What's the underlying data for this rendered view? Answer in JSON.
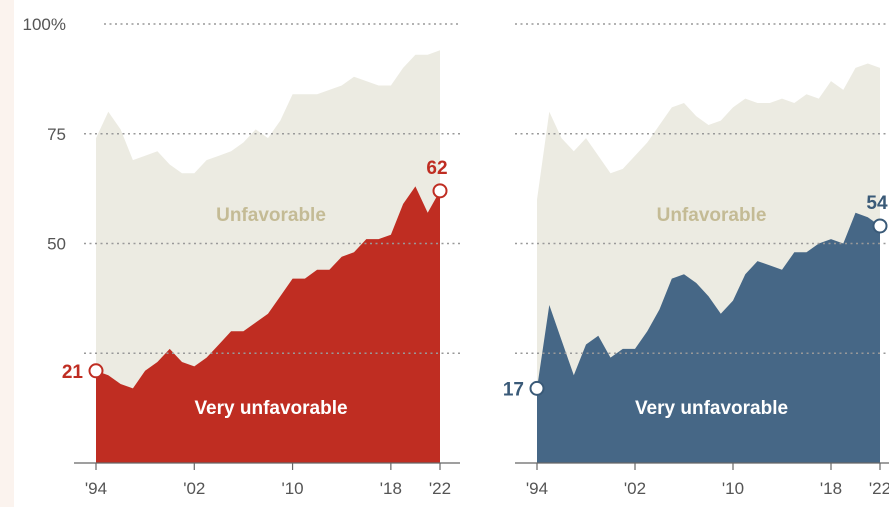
{
  "colors": {
    "page_bg": "#fbf3ee",
    "plot_bg": "#ffffff",
    "unfavorable_fill": "#ecebe2",
    "unfavorable_label": "#c4bb95",
    "left_very_fill": "#bf2d22",
    "left_label_accent": "#bf2d22",
    "right_very_fill": "#466786",
    "right_label_accent": "#3a5a78",
    "grid": "#999999",
    "tick_text": "#555555"
  },
  "chart_data": [
    {
      "type": "area",
      "id": "left",
      "title": "",
      "xlabel": "",
      "ylabel": "",
      "xlim": [
        1994,
        2022
      ],
      "ylim": [
        0,
        100
      ],
      "grid": true,
      "y_ticks": [
        {
          "value": 100,
          "label": "100%"
        },
        {
          "value": 75,
          "label": "75"
        },
        {
          "value": 50,
          "label": "50"
        },
        {
          "value": 25,
          "label": ""
        }
      ],
      "x_ticks": [
        {
          "value": 1994,
          "label": "'94"
        },
        {
          "value": 2002,
          "label": "'02"
        },
        {
          "value": 2010,
          "label": "'10"
        },
        {
          "value": 2018,
          "label": "'18"
        },
        {
          "value": 2022,
          "label": "'22"
        }
      ],
      "series": [
        {
          "name": "Unfavorable",
          "x": [
            1994,
            1995,
            1996,
            1997,
            1998,
            1999,
            2000,
            2001,
            2002,
            2003,
            2004,
            2005,
            2006,
            2007,
            2008,
            2009,
            2010,
            2011,
            2012,
            2013,
            2014,
            2015,
            2016,
            2017,
            2018,
            2019,
            2020,
            2021,
            2022
          ],
          "y": [
            74,
            80,
            76,
            69,
            70,
            71,
            68,
            66,
            66,
            69,
            70,
            71,
            73,
            76,
            74,
            78,
            84,
            84,
            84,
            85,
            86,
            88,
            87,
            86,
            86,
            90,
            93,
            93,
            94
          ]
        },
        {
          "name": "Very unfavorable",
          "x": [
            1994,
            1995,
            1996,
            1997,
            1998,
            1999,
            2000,
            2001,
            2002,
            2003,
            2004,
            2005,
            2006,
            2007,
            2008,
            2009,
            2010,
            2011,
            2012,
            2013,
            2014,
            2015,
            2016,
            2017,
            2018,
            2019,
            2020,
            2021,
            2022
          ],
          "y": [
            21,
            20,
            18,
            17,
            21,
            23,
            26,
            23,
            22,
            24,
            27,
            30,
            30,
            32,
            34,
            38,
            42,
            42,
            44,
            44,
            47,
            48,
            51,
            51,
            52,
            59,
            63,
            57,
            62
          ]
        }
      ],
      "annotations": [
        {
          "x": 1994,
          "y": 21,
          "label": "21"
        },
        {
          "x": 2022,
          "y": 62,
          "label": "62"
        }
      ],
      "area_labels": {
        "unfavorable": "Unfavorable",
        "very": "Very unfavorable"
      }
    },
    {
      "type": "area",
      "id": "right",
      "title": "",
      "xlabel": "",
      "ylabel": "",
      "xlim": [
        1994,
        2022
      ],
      "ylim": [
        0,
        100
      ],
      "grid": true,
      "y_ticks": [
        {
          "value": 100,
          "label": ""
        },
        {
          "value": 75,
          "label": ""
        },
        {
          "value": 50,
          "label": ""
        },
        {
          "value": 25,
          "label": ""
        }
      ],
      "x_ticks": [
        {
          "value": 1994,
          "label": "'94"
        },
        {
          "value": 2002,
          "label": "'02"
        },
        {
          "value": 2010,
          "label": "'10"
        },
        {
          "value": 2018,
          "label": "'18"
        },
        {
          "value": 2022,
          "label": "'22"
        }
      ],
      "series": [
        {
          "name": "Unfavorable",
          "x": [
            1994,
            1995,
            1996,
            1997,
            1998,
            1999,
            2000,
            2001,
            2002,
            2003,
            2004,
            2005,
            2006,
            2007,
            2008,
            2009,
            2010,
            2011,
            2012,
            2013,
            2014,
            2015,
            2016,
            2017,
            2018,
            2019,
            2020,
            2021,
            2022
          ],
          "y": [
            60,
            80,
            74,
            71,
            74,
            70,
            66,
            67,
            70,
            73,
            77,
            81,
            82,
            79,
            77,
            78,
            81,
            83,
            82,
            82,
            83,
            82,
            84,
            83,
            87,
            85,
            90,
            91,
            90
          ]
        },
        {
          "name": "Very unfavorable",
          "x": [
            1994,
            1995,
            1996,
            1997,
            1998,
            1999,
            2000,
            2001,
            2002,
            2003,
            2004,
            2005,
            2006,
            2007,
            2008,
            2009,
            2010,
            2011,
            2012,
            2013,
            2014,
            2015,
            2016,
            2017,
            2018,
            2019,
            2020,
            2021,
            2022
          ],
          "y": [
            17,
            36,
            28,
            20,
            27,
            29,
            24,
            26,
            26,
            30,
            35,
            42,
            43,
            41,
            38,
            34,
            37,
            43,
            46,
            45,
            44,
            48,
            48,
            50,
            51,
            50,
            57,
            56,
            54
          ]
        }
      ],
      "annotations": [
        {
          "x": 1994,
          "y": 17,
          "label": "17"
        },
        {
          "x": 2022,
          "y": 54,
          "label": "54"
        }
      ],
      "area_labels": {
        "unfavorable": "Unfavorable",
        "very": "Very unfavorable"
      }
    }
  ]
}
